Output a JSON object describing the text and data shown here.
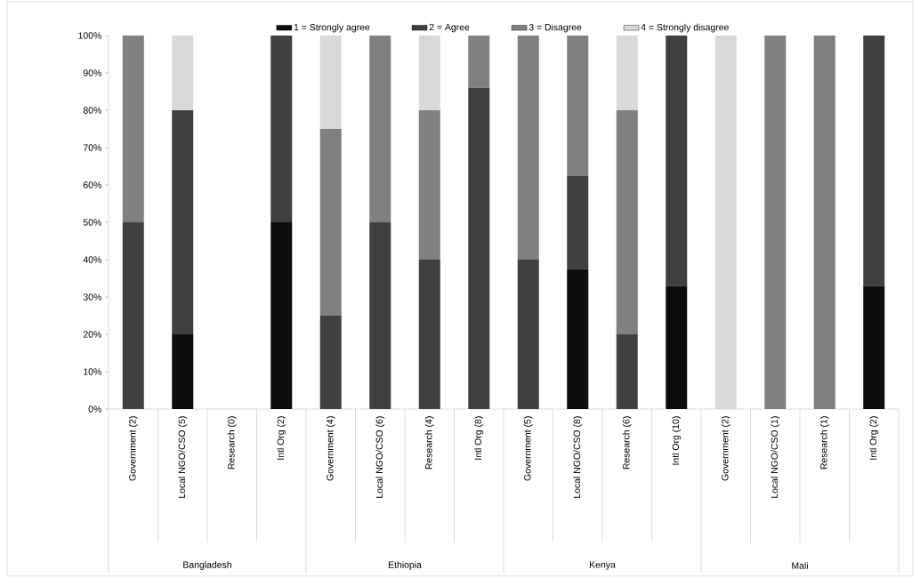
{
  "chart_data": {
    "type": "bar",
    "stacked": true,
    "legend": "top",
    "categories": [
      "Government (2)",
      "Local NGO/CSO (5)",
      "Research (0)",
      "Intl Org (2)",
      "Government (4)",
      "Local NGO/CSO (6)",
      "Research (4)",
      "Intl Org (8)",
      "Government (5)",
      "Local NGO/CSO (8)",
      "Research (6)",
      "Intl Org (10)",
      "Government (2)",
      "Local NGO/CSO (1)",
      "Research (1)",
      "Intl Org (2)"
    ],
    "series": [
      {
        "name": "1 = Strongly agree",
        "color": "#0d0d0d",
        "values": [
          0,
          20,
          0,
          50,
          0,
          0,
          0,
          0,
          0,
          37.5,
          0,
          33,
          0,
          0,
          0,
          33
        ]
      },
      {
        "name": "2 = Agree",
        "color": "#404040",
        "values": [
          50,
          60,
          0,
          50,
          25,
          50,
          40,
          86,
          40,
          25,
          20,
          67,
          0,
          0,
          0,
          67
        ]
      },
      {
        "name": "3 = Disagree",
        "color": "#808080",
        "values": [
          50,
          0,
          0,
          0,
          50,
          50,
          40,
          14,
          60,
          37.5,
          60,
          0,
          0,
          100,
          100,
          0
        ]
      },
      {
        "name": "4 = Strongly disagree",
        "color": "#d9d9d9",
        "values": [
          0,
          20,
          0,
          0,
          25,
          0,
          20,
          0,
          0,
          0,
          20,
          0,
          100,
          0,
          0,
          0
        ]
      }
    ],
    "ylim": [
      0,
      100
    ],
    "yticks": [
      {
        "value": 0,
        "label": "0%"
      },
      {
        "value": 10,
        "label": "10%"
      },
      {
        "value": 20,
        "label": "20%"
      },
      {
        "value": 30,
        "label": "30%"
      },
      {
        "value": 40,
        "label": "40%"
      },
      {
        "value": 50,
        "label": "50%"
      },
      {
        "value": 60,
        "label": "60%"
      },
      {
        "value": 70,
        "label": "70%"
      },
      {
        "value": 80,
        "label": "80%"
      },
      {
        "value": 90,
        "label": "90%"
      },
      {
        "value": 100,
        "label": "100%"
      }
    ],
    "annotations": [
      "Bangladesh",
      "Ethiopia",
      "Kenya",
      "Mali"
    ]
  }
}
